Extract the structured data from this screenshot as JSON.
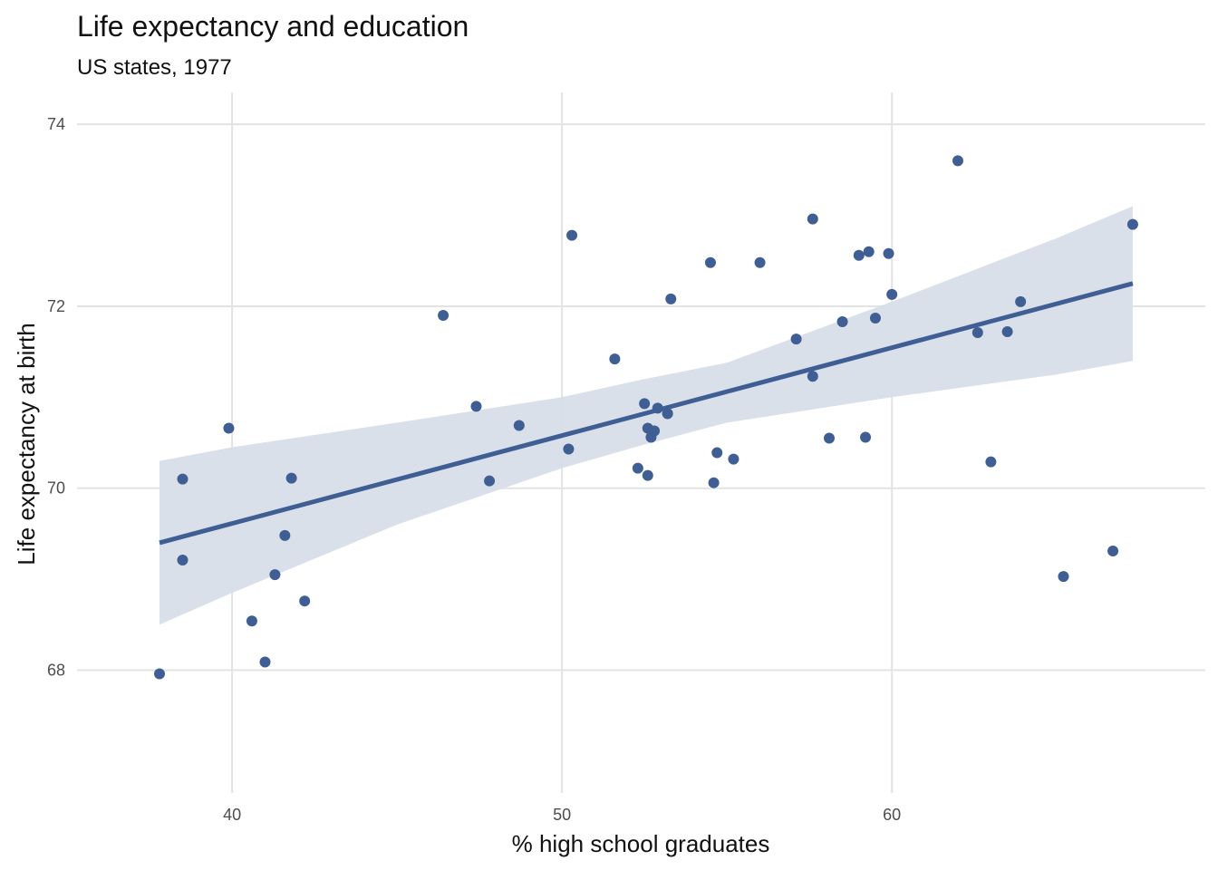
{
  "chart_data": {
    "type": "scatter",
    "title": "Life expectancy and education",
    "subtitle": "US states, 1977",
    "xlabel": "% high school graduates",
    "ylabel": "Life expectancy at birth",
    "xlim": [
      35.3,
      69.5
    ],
    "ylim": [
      66.65,
      74.45
    ],
    "x_ticks": [
      40,
      50,
      60
    ],
    "y_ticks": [
      68,
      70,
      72,
      74
    ],
    "grid": true,
    "colors": {
      "points": "#3F5F94",
      "fit_line": "#3F5F94",
      "ribbon": "#D8DEE9",
      "grid": "#E3E3E3"
    },
    "points": {
      "x": [
        37.8,
        38.5,
        38.5,
        39.9,
        40.6,
        41.0,
        41.3,
        41.6,
        41.8,
        42.2,
        46.4,
        47.4,
        47.8,
        48.7,
        50.2,
        50.3,
        51.6,
        52.3,
        52.5,
        52.6,
        52.6,
        52.7,
        52.8,
        52.9,
        53.2,
        53.2,
        53.3,
        54.5,
        54.6,
        54.7,
        55.2,
        56.0,
        57.1,
        57.6,
        57.6,
        58.1,
        58.5,
        59.0,
        59.2,
        59.3,
        59.5,
        59.9,
        60.0,
        62.0,
        62.6,
        63.0,
        63.5,
        63.9,
        65.2,
        66.7,
        67.3
      ],
      "y": [
        67.96,
        70.1,
        69.21,
        70.66,
        68.54,
        68.09,
        69.05,
        69.48,
        70.11,
        68.76,
        71.9,
        70.9,
        70.08,
        70.69,
        70.43,
        72.78,
        71.42,
        70.22,
        70.93,
        70.66,
        70.14,
        70.56,
        70.63,
        70.88,
        70.82,
        70.82,
        72.08,
        72.48,
        70.06,
        70.39,
        70.32,
        72.48,
        71.64,
        72.96,
        71.23,
        70.55,
        71.83,
        72.56,
        70.56,
        72.6,
        71.87,
        72.58,
        72.13,
        73.6,
        71.71,
        70.29,
        71.72,
        72.05,
        69.03,
        69.31,
        72.9
      ]
    },
    "fit": {
      "x": [
        37.8,
        67.3
      ],
      "y": [
        69.4,
        72.25
      ]
    },
    "confidence_band": {
      "x": [
        37.8,
        40,
        45,
        50,
        52.5,
        55,
        60,
        65,
        67.3
      ],
      "lower": [
        68.5,
        68.85,
        69.6,
        70.22,
        70.48,
        70.72,
        71.0,
        71.25,
        71.4
      ],
      "upper": [
        70.3,
        70.45,
        70.72,
        71.0,
        71.2,
        71.38,
        72.05,
        72.75,
        73.1
      ]
    }
  }
}
